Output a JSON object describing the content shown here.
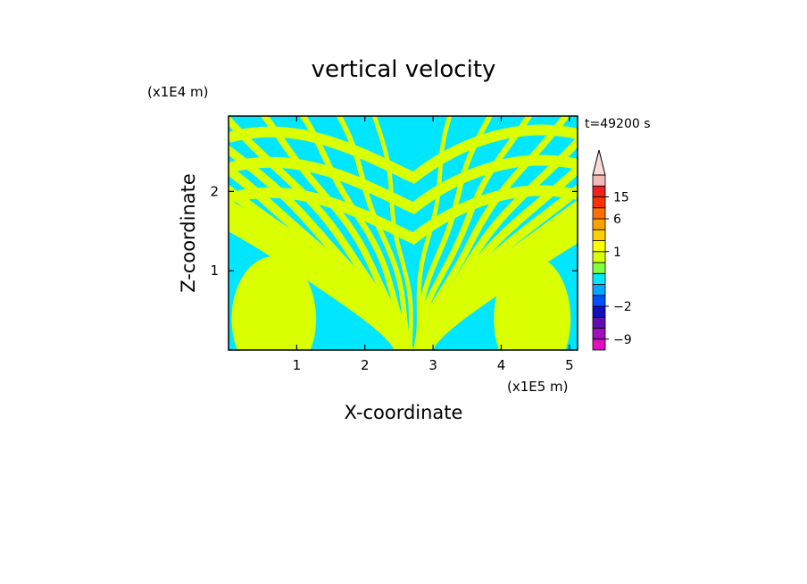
{
  "chart_data": {
    "type": "heatmap",
    "title": "vertical velocity",
    "xlabel": "X-coordinate",
    "ylabel": "Z-coordinate",
    "x_unit": "(x1E5 m)",
    "y_unit": "(x1E4 m)",
    "time_label": "t=49200 s",
    "xlim": [
      0,
      5.12
    ],
    "ylim": [
      0,
      2.95
    ],
    "x_ticks": [
      {
        "value": 1,
        "label": "1"
      },
      {
        "value": 2,
        "label": "2"
      },
      {
        "value": 3,
        "label": "3"
      },
      {
        "value": 4,
        "label": "4"
      },
      {
        "value": 5,
        "label": "5"
      }
    ],
    "y_ticks": [
      {
        "value": 1,
        "label": "1"
      },
      {
        "value": 2,
        "label": "2"
      }
    ],
    "field_colors": {
      "negative": "#00e6ff",
      "positive": "#d9ff00"
    },
    "colorbar": {
      "levels": [
        -12,
        -9,
        -6,
        -4,
        -2,
        -1,
        -0.5,
        0,
        0.5,
        1,
        2,
        4,
        6,
        10,
        15,
        20,
        30
      ],
      "colors": [
        "#e010c0",
        "#a010c0",
        "#6010b0",
        "#1010c0",
        "#0050ff",
        "#00a8ff",
        "#00e6ff",
        "#80ff40",
        "#d9ff00",
        "#ffff00",
        "#ffd000",
        "#ffa000",
        "#ff7000",
        "#ff3000",
        "#ee2020",
        "#f4b8b8"
      ],
      "labels": [
        {
          "value": -9,
          "label": "−9"
        },
        {
          "value": -2,
          "label": "−2"
        },
        {
          "value": 1,
          "label": "1"
        },
        {
          "value": 6,
          "label": "6"
        },
        {
          "value": 15,
          "label": "15"
        }
      ],
      "extend": "max",
      "extend_color": "#f6dcd4"
    },
    "legend_position": "right"
  }
}
